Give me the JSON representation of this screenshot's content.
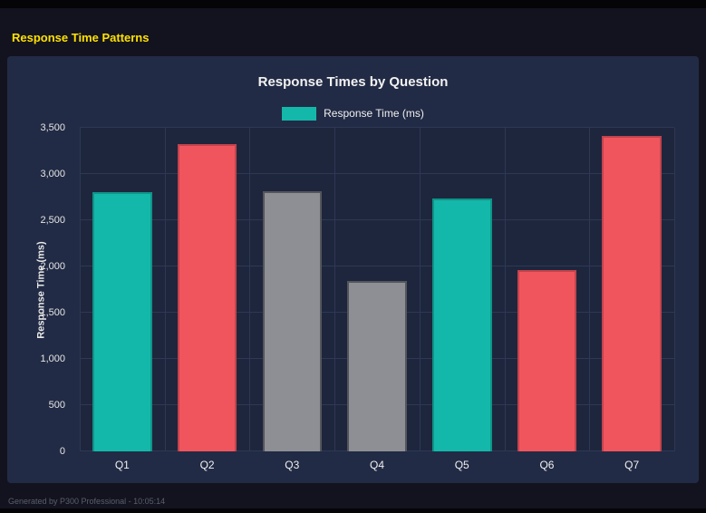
{
  "page": {
    "title": "Response Time Patterns",
    "footer": "Generated by P300 Professional - 10:05:14"
  },
  "chart": {
    "title": "Response Times by Question",
    "legend_label": "Response Time (ms)",
    "y_axis_label": "Response Time (ms)"
  },
  "chart_data": {
    "type": "bar",
    "title": "Response Times by Question",
    "categories": [
      "Q1",
      "Q2",
      "Q3",
      "Q4",
      "Q5",
      "Q6",
      "Q7"
    ],
    "values": [
      2800,
      3320,
      2810,
      1845,
      2735,
      1960,
      3410
    ],
    "bar_colors": [
      "#14b8aa",
      "#f0555e",
      "#8d8f95",
      "#8d8f95",
      "#14b8aa",
      "#f0555e",
      "#f0555e"
    ],
    "bar_border_colors": [
      "#0e9488",
      "#c2434c",
      "#54565c",
      "#54565c",
      "#0e9488",
      "#c2434c",
      "#c2434c"
    ],
    "xlabel": "",
    "ylabel": "Response Time (ms)",
    "ylim": [
      0,
      3500
    ],
    "yticks": [
      0,
      500,
      1000,
      1500,
      2000,
      2500,
      3000,
      3500
    ],
    "ytick_labels": [
      "0",
      "500",
      "1,000",
      "1,500",
      "2,000",
      "2,500",
      "3,000",
      "3,500"
    ],
    "legend": [
      "Response Time (ms)"
    ],
    "legend_position": "top",
    "legend_color": "#14b8aa",
    "grid": true,
    "colors": {
      "teal": "#14b8aa",
      "red": "#f0555e",
      "gray": "#8d8f95",
      "accent_yellow": "#ffe100"
    }
  }
}
